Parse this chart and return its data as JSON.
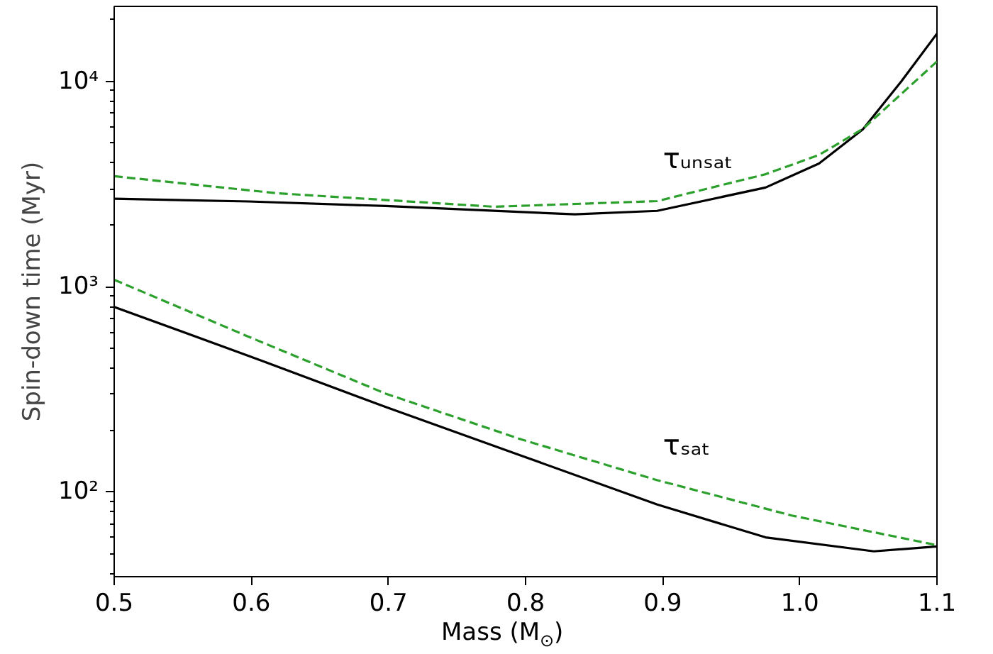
{
  "chart_data": {
    "type": "line",
    "xlabel": "Mass (M$_{⊙}$)",
    "ylabel": "Spin-down time (Myr)",
    "log": "y",
    "grid": false,
    "xlim": [
      0.5,
      1.1
    ],
    "ylim": [
      38.6,
      23200
    ],
    "xticks": [
      {
        "value": 0.5,
        "label": "0.5"
      },
      {
        "value": 0.6,
        "label": "0.6"
      },
      {
        "value": 0.7,
        "label": "0.7"
      },
      {
        "value": 0.8,
        "label": "0.8"
      },
      {
        "value": 0.9,
        "label": "0.9"
      },
      {
        "value": 1.0,
        "label": "1.0"
      },
      {
        "value": 1.1,
        "label": "1.1"
      }
    ],
    "yticks": [
      {
        "value": 100,
        "label": "10²"
      },
      {
        "value": 1000,
        "label": "10³"
      },
      {
        "value": 10000,
        "label": "10⁴"
      }
    ],
    "series": [
      {
        "color": "#000000",
        "line_style": "solid",
        "x": [
          0.5,
          0.598,
          0.698,
          0.836,
          0.896,
          0.975,
          1.014,
          1.046,
          1.074,
          1.1
        ],
        "values": [
          2680,
          2600,
          2470,
          2250,
          2340,
          3040,
          3980,
          5840,
          10000,
          17100
        ]
      },
      {
        "color": "#2ca02c",
        "line_style": "dashed",
        "x": [
          0.5,
          0.619,
          0.777,
          0.896,
          0.975,
          1.014,
          1.046,
          1.1
        ],
        "values": [
          3450,
          2850,
          2450,
          2610,
          3530,
          4380,
          5870,
          12500
        ]
      },
      {
        "color": "#000000",
        "line_style": "solid",
        "x": [
          0.5,
          0.598,
          0.698,
          0.797,
          0.896,
          0.975,
          1.054,
          1.1
        ],
        "values": [
          796,
          460,
          259,
          150,
          86.7,
          60,
          51.3,
          54.2
        ]
      },
      {
        "color": "#2ca02c",
        "line_style": "dashed",
        "x": [
          0.5,
          0.598,
          0.698,
          0.797,
          0.896,
          0.994,
          1.1
        ],
        "values": [
          1080,
          570,
          301,
          180,
          114,
          76.7,
          55
        ]
      }
    ],
    "annotations": [
      "τᵤₙₛₐₜ",
      "τₛₐₜ"
    ]
  }
}
